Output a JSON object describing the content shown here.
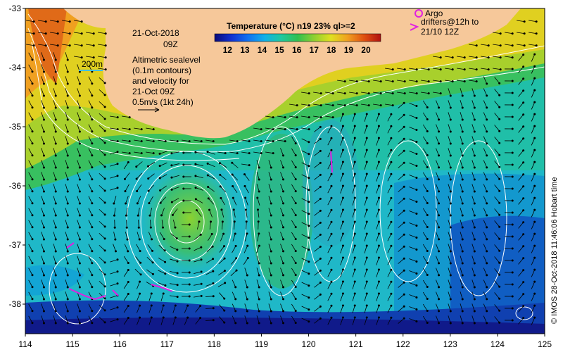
{
  "map": {
    "lon_range": [
      114,
      125
    ],
    "lat_range": [
      -38.5,
      -33
    ],
    "lon_ticks": [
      "114",
      "115",
      "116",
      "117",
      "118",
      "119",
      "120",
      "121",
      "122",
      "123",
      "124",
      "125"
    ],
    "lat_ticks": [
      "-33",
      "-34",
      "-35",
      "-36",
      "-37",
      "-38"
    ],
    "colors": {
      "land": "#f6c89a",
      "contour": "#ffffff",
      "arrow": "#000000",
      "argo": "#e020e0",
      "drifter": "#e020e0",
      "frame": "#000000"
    }
  },
  "annotations": {
    "date": "21-Oct-2018",
    "time": "09Z",
    "isobath": "200m",
    "altimetry_lines": [
      "Altimetric sealevel",
      "(0.1m contours)",
      "and velocity for",
      "21-Oct 09Z",
      "0.5m/s (1kt 24h)"
    ]
  },
  "colorbar": {
    "title": "Temperature (°C) n19 23% ql>=2",
    "ticks": [
      "12",
      "13",
      "14",
      "15",
      "16",
      "17",
      "18",
      "19",
      "20"
    ],
    "colormap": [
      "#0a0a78",
      "#1030d0",
      "#1070f0",
      "#10b0e8",
      "#20c8a0",
      "#30c050",
      "#90d030",
      "#e0e020",
      "#f0a020",
      "#e05010",
      "#b01010"
    ]
  },
  "legend": {
    "argo_label": "Argo",
    "drifter_label_1": "drifters@12h to",
    "drifter_label_2": "21/10 12Z"
  },
  "credit": "© IMOS 28-Oct-2018 11:46:06 Hobart time"
}
